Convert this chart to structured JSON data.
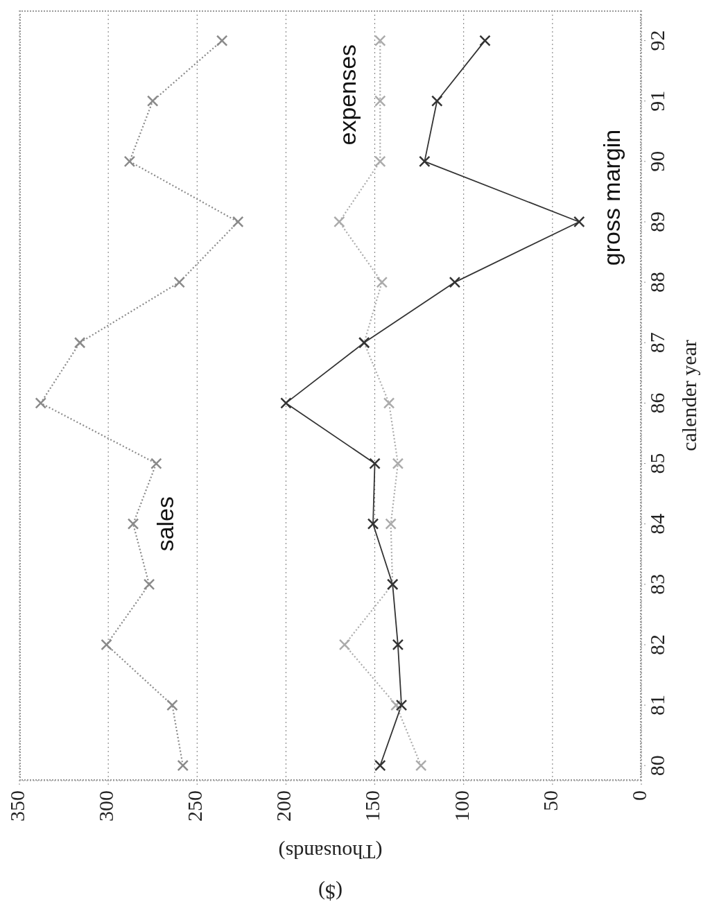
{
  "chart_data": {
    "type": "line",
    "xlabel": "($)\n(Thousands)",
    "ylabel": "calender year",
    "series": [
      {
        "name": "sales",
        "color": "#8a8a8a",
        "line_style": "dotted",
        "x": [
          258,
          264,
          301,
          277,
          286,
          273,
          338,
          316,
          260,
          227,
          288,
          275,
          236
        ],
        "values": [
          80,
          81,
          82,
          83,
          84,
          85,
          86,
          87,
          88,
          89,
          90,
          91,
          92
        ]
      },
      {
        "name": "expenses",
        "color": "#ababab",
        "line_style": "dotted",
        "x": [
          124,
          138,
          167,
          140,
          141,
          137,
          142,
          156,
          146,
          170,
          147,
          147,
          147
        ],
        "values": [
          80,
          81,
          82,
          83,
          84,
          85,
          86,
          87,
          88,
          89,
          90,
          91,
          92
        ]
      },
      {
        "name": "gross margin",
        "color": "#333333",
        "line_style": "solid",
        "x": [
          147,
          135,
          137,
          140,
          151,
          150,
          200,
          156,
          105,
          35,
          122,
          115,
          88
        ],
        "values": [
          80,
          81,
          82,
          83,
          84,
          85,
          86,
          87,
          88,
          89,
          90,
          91,
          92
        ]
      }
    ],
    "xlim": [
      350,
      0
    ],
    "xticks": [
      0,
      50,
      100,
      150,
      200,
      250,
      300,
      350
    ],
    "ylim": [
      79.75,
      92.5
    ],
    "yticks": [
      80,
      81,
      82,
      83,
      84,
      85,
      86,
      87,
      88,
      89,
      90,
      91,
      92
    ],
    "grid": "x",
    "legend": false,
    "marker": "cross"
  }
}
